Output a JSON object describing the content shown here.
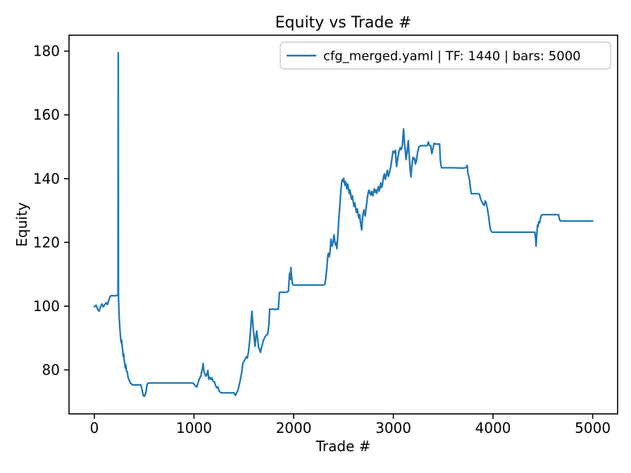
{
  "chart_data": {
    "type": "line",
    "title": "Equity vs Trade #",
    "xlabel": "Trade #",
    "ylabel": "Equity",
    "xlim": [
      -254,
      5250
    ],
    "ylim": [
      66.2,
      185.0
    ],
    "x_ticks": [
      0,
      1000,
      2000,
      3000,
      4000,
      5000
    ],
    "y_ticks": [
      80,
      100,
      120,
      140,
      160,
      180
    ],
    "grid": false,
    "legend": {
      "position": "upper right",
      "entries": [
        {
          "label": "cfg_merged.yaml | TF: 1440 | bars: 5000",
          "color": "#1f77b4"
        }
      ]
    },
    "series": [
      {
        "name": "cfg_merged.yaml | TF: 1440 | bars: 5000",
        "color": "#1f77b4",
        "points": [
          [
            0,
            99.8
          ],
          [
            18,
            100.3
          ],
          [
            32,
            99.1
          ],
          [
            48,
            98.4
          ],
          [
            62,
            99.7
          ],
          [
            76,
            100.7
          ],
          [
            90,
            99.8
          ],
          [
            104,
            100.4
          ],
          [
            118,
            101.1
          ],
          [
            132,
            100.5
          ],
          [
            148,
            102.2
          ],
          [
            162,
            103.2
          ],
          [
            180,
            103.3
          ],
          [
            205,
            103.2
          ],
          [
            228,
            103.4
          ],
          [
            237,
            103.4
          ],
          [
            240,
            179.5
          ],
          [
            242,
            103.0
          ],
          [
            245,
            100.4
          ],
          [
            249,
            96.7
          ],
          [
            256,
            93.0
          ],
          [
            263,
            90.1
          ],
          [
            269,
            88.6
          ],
          [
            273,
            89.4
          ],
          [
            279,
            87.5
          ],
          [
            284,
            86.4
          ],
          [
            289,
            84.3
          ],
          [
            294,
            85.1
          ],
          [
            299,
            83.0
          ],
          [
            304,
            82.4
          ],
          [
            310,
            80.6
          ],
          [
            315,
            81.7
          ],
          [
            322,
            79.7
          ],
          [
            331,
            79.4
          ],
          [
            339,
            77.6
          ],
          [
            349,
            76.9
          ],
          [
            361,
            75.9
          ],
          [
            373,
            75.6
          ],
          [
            382,
            75.3
          ],
          [
            466,
            75.3
          ],
          [
            480,
            73.6
          ],
          [
            491,
            72.0
          ],
          [
            500,
            71.7
          ],
          [
            509,
            72.1
          ],
          [
            518,
            73.1
          ],
          [
            529,
            75.4
          ],
          [
            542,
            75.9
          ],
          [
            990,
            75.9
          ],
          [
            1008,
            75.2
          ],
          [
            1026,
            74.6
          ],
          [
            1042,
            76.1
          ],
          [
            1058,
            77.5
          ],
          [
            1070,
            78.1
          ],
          [
            1076,
            79.4
          ],
          [
            1084,
            80.3
          ],
          [
            1092,
            82.0
          ],
          [
            1100,
            79.3
          ],
          [
            1110,
            78.7
          ],
          [
            1119,
            78.0
          ],
          [
            1128,
            78.4
          ],
          [
            1139,
            79.8
          ],
          [
            1148,
            77.1
          ],
          [
            1158,
            77.7
          ],
          [
            1169,
            77.0
          ],
          [
            1179,
            77.5
          ],
          [
            1191,
            76.4
          ],
          [
            1204,
            76.3
          ],
          [
            1216,
            75.1
          ],
          [
            1227,
            74.4
          ],
          [
            1239,
            74.7
          ],
          [
            1251,
            73.5
          ],
          [
            1262,
            73.0
          ],
          [
            1274,
            72.8
          ],
          [
            1400,
            72.8
          ],
          [
            1414,
            72.0
          ],
          [
            1426,
            72.7
          ],
          [
            1440,
            73.6
          ],
          [
            1452,
            75.1
          ],
          [
            1463,
            76.6
          ],
          [
            1471,
            77.9
          ],
          [
            1481,
            79.6
          ],
          [
            1490,
            82.1
          ],
          [
            1501,
            82.6
          ],
          [
            1513,
            83.4
          ],
          [
            1525,
            84.1
          ],
          [
            1535,
            83.7
          ],
          [
            1546,
            85.6
          ],
          [
            1558,
            89.1
          ],
          [
            1570,
            93.6
          ],
          [
            1581,
            98.4
          ],
          [
            1589,
            95.2
          ],
          [
            1597,
            92.1
          ],
          [
            1606,
            89.2
          ],
          [
            1613,
            87.4
          ],
          [
            1621,
            90.4
          ],
          [
            1629,
            92.2
          ],
          [
            1639,
            89.6
          ],
          [
            1649,
            87.1
          ],
          [
            1659,
            86.1
          ],
          [
            1668,
            85.5
          ],
          [
            1678,
            87.1
          ],
          [
            1689,
            88.4
          ],
          [
            1701,
            89.6
          ],
          [
            1714,
            90.4
          ],
          [
            1727,
            91.0
          ],
          [
            1739,
            91.2
          ],
          [
            1751,
            94.1
          ],
          [
            1759,
            99.1
          ],
          [
            1775,
            99.0
          ],
          [
            1793,
            99.1
          ],
          [
            1812,
            98.9
          ],
          [
            1831,
            99.1
          ],
          [
            1846,
            99.0
          ],
          [
            1857,
            104.3
          ],
          [
            1882,
            104.4
          ],
          [
            1906,
            104.3
          ],
          [
            1928,
            104.4
          ],
          [
            1947,
            104.6
          ],
          [
            1959,
            110.3
          ],
          [
            1965,
            108.4
          ],
          [
            1972,
            112.1
          ],
          [
            1979,
            109.4
          ],
          [
            1987,
            107.0
          ],
          [
            1998,
            106.6
          ],
          [
            2290,
            106.6
          ],
          [
            2313,
            106.8
          ],
          [
            2322,
            108.8
          ],
          [
            2331,
            111.4
          ],
          [
            2339,
            114.3
          ],
          [
            2345,
            116.4
          ],
          [
            2352,
            116.6
          ],
          [
            2358,
            115.5
          ],
          [
            2366,
            117.6
          ],
          [
            2374,
            121.0
          ],
          [
            2381,
            119.6
          ],
          [
            2387,
            118.8
          ],
          [
            2396,
            120.4
          ],
          [
            2405,
            122.4
          ],
          [
            2413,
            120.1
          ],
          [
            2421,
            119.1
          ],
          [
            2427,
            119.9
          ],
          [
            2434,
            118.0
          ],
          [
            2441,
            121.1
          ],
          [
            2448,
            124.7
          ],
          [
            2455,
            128.1
          ],
          [
            2462,
            131.0
          ],
          [
            2469,
            134.2
          ],
          [
            2475,
            136.6
          ],
          [
            2481,
            138.6
          ],
          [
            2489,
            139.7
          ],
          [
            2496,
            139.1
          ],
          [
            2503,
            140.1
          ],
          [
            2509,
            138.6
          ],
          [
            2516,
            137.9
          ],
          [
            2522,
            139.0
          ],
          [
            2528,
            138.1
          ],
          [
            2534,
            136.8
          ],
          [
            2541,
            138.3
          ],
          [
            2549,
            137.1
          ],
          [
            2557,
            135.3
          ],
          [
            2565,
            136.4
          ],
          [
            2573,
            134.9
          ],
          [
            2581,
            133.5
          ],
          [
            2589,
            134.6
          ],
          [
            2597,
            132.9
          ],
          [
            2605,
            131.3
          ],
          [
            2613,
            132.4
          ],
          [
            2621,
            130.9
          ],
          [
            2629,
            129.4
          ],
          [
            2638,
            130.5
          ],
          [
            2647,
            128.6
          ],
          [
            2655,
            127.6
          ],
          [
            2662,
            128.7
          ],
          [
            2669,
            126.6
          ],
          [
            2677,
            125.0
          ],
          [
            2683,
            123.9
          ],
          [
            2690,
            127.4
          ],
          [
            2697,
            129.1
          ],
          [
            2704,
            130.2
          ],
          [
            2711,
            129.1
          ],
          [
            2718,
            128.3
          ],
          [
            2725,
            130.4
          ],
          [
            2732,
            132.0
          ],
          [
            2740,
            134.2
          ],
          [
            2748,
            135.7
          ],
          [
            2756,
            136.4
          ],
          [
            2764,
            135.4
          ],
          [
            2772,
            134.9
          ],
          [
            2780,
            136.0
          ],
          [
            2787,
            135.1
          ],
          [
            2795,
            134.6
          ],
          [
            2802,
            136.1
          ],
          [
            2810,
            136.8
          ],
          [
            2818,
            135.7
          ],
          [
            2826,
            136.4
          ],
          [
            2834,
            135.4
          ],
          [
            2842,
            136.6
          ],
          [
            2850,
            137.5
          ],
          [
            2858,
            136.1
          ],
          [
            2866,
            137.4
          ],
          [
            2874,
            138.6
          ],
          [
            2882,
            137.2
          ],
          [
            2891,
            138.1
          ],
          [
            2900,
            140.4
          ],
          [
            2910,
            141.5
          ],
          [
            2920,
            139.8
          ],
          [
            2930,
            141.1
          ],
          [
            2940,
            142.6
          ],
          [
            2950,
            140.7
          ],
          [
            2961,
            141.9
          ],
          [
            2973,
            143.6
          ],
          [
            2985,
            146.1
          ],
          [
            2997,
            148.6
          ],
          [
            3009,
            148.1
          ],
          [
            3021,
            148.9
          ],
          [
            3032,
            143.8
          ],
          [
            3044,
            146.4
          ],
          [
            3056,
            148.4
          ],
          [
            3068,
            149.7
          ],
          [
            3079,
            149.1
          ],
          [
            3090,
            150.4
          ],
          [
            3103,
            155.6
          ],
          [
            3111,
            151.1
          ],
          [
            3119,
            149.3
          ],
          [
            3127,
            146.0
          ],
          [
            3138,
            148.4
          ],
          [
            3150,
            151.9
          ],
          [
            3157,
            148.1
          ],
          [
            3163,
            145.6
          ],
          [
            3169,
            142.6
          ],
          [
            3176,
            140.5
          ],
          [
            3186,
            144.1
          ],
          [
            3197,
            146.7
          ],
          [
            3204,
            146.1
          ],
          [
            3212,
            146.4
          ],
          [
            3221,
            144.6
          ],
          [
            3230,
            145.3
          ],
          [
            3243,
            148.1
          ],
          [
            3256,
            150.0
          ],
          [
            3269,
            150.2
          ],
          [
            3282,
            150.4
          ],
          [
            3296,
            150.3
          ],
          [
            3311,
            150.4
          ],
          [
            3326,
            150.3
          ],
          [
            3340,
            150.4
          ],
          [
            3351,
            151.5
          ],
          [
            3362,
            150.4
          ],
          [
            3374,
            150.3
          ],
          [
            3386,
            147.8
          ],
          [
            3397,
            149.4
          ],
          [
            3409,
            151.1
          ],
          [
            3424,
            150.8
          ],
          [
            3439,
            150.9
          ],
          [
            3453,
            150.8
          ],
          [
            3464,
            150.9
          ],
          [
            3471,
            146.1
          ],
          [
            3477,
            144.2
          ],
          [
            3484,
            143.4
          ],
          [
            3590,
            143.4
          ],
          [
            3700,
            143.3
          ],
          [
            3722,
            143.4
          ],
          [
            3734,
            143.6
          ],
          [
            3741,
            144.2
          ],
          [
            3748,
            141.6
          ],
          [
            3756,
            140.8
          ],
          [
            3764,
            139.7
          ],
          [
            3771,
            137.6
          ],
          [
            3781,
            135.3
          ],
          [
            3810,
            135.3
          ],
          [
            3845,
            135.3
          ],
          [
            3864,
            135.1
          ],
          [
            3876,
            133.6
          ],
          [
            3888,
            132.7
          ],
          [
            3899,
            132.1
          ],
          [
            3911,
            131.6
          ],
          [
            3921,
            133.0
          ],
          [
            3931,
            132.4
          ],
          [
            3944,
            130.4
          ],
          [
            3955,
            128.4
          ],
          [
            3964,
            126.1
          ],
          [
            3972,
            124.4
          ],
          [
            3980,
            123.6
          ],
          [
            3991,
            123.2
          ],
          [
            4100,
            123.2
          ],
          [
            4230,
            123.2
          ],
          [
            4360,
            123.2
          ],
          [
            4419,
            123.2
          ],
          [
            4427,
            121.1
          ],
          [
            4432,
            118.8
          ],
          [
            4439,
            122.4
          ],
          [
            4446,
            125.4
          ],
          [
            4452,
            124.9
          ],
          [
            4459,
            126.5
          ],
          [
            4467,
            126.1
          ],
          [
            4475,
            127.4
          ],
          [
            4482,
            128.3
          ],
          [
            4491,
            128.6
          ],
          [
            4502,
            128.7
          ],
          [
            4570,
            128.7
          ],
          [
            4640,
            128.7
          ],
          [
            4657,
            128.7
          ],
          [
            4665,
            127.4
          ],
          [
            4671,
            126.9
          ],
          [
            4681,
            126.7
          ],
          [
            4760,
            126.7
          ],
          [
            4860,
            126.7
          ],
          [
            4960,
            126.7
          ],
          [
            5000,
            126.7
          ]
        ]
      }
    ]
  },
  "colors": {
    "line": "#1f77b4",
    "text": "#000000",
    "spine": "#000000",
    "legend_border": "#cccccc",
    "background": "#ffffff"
  }
}
